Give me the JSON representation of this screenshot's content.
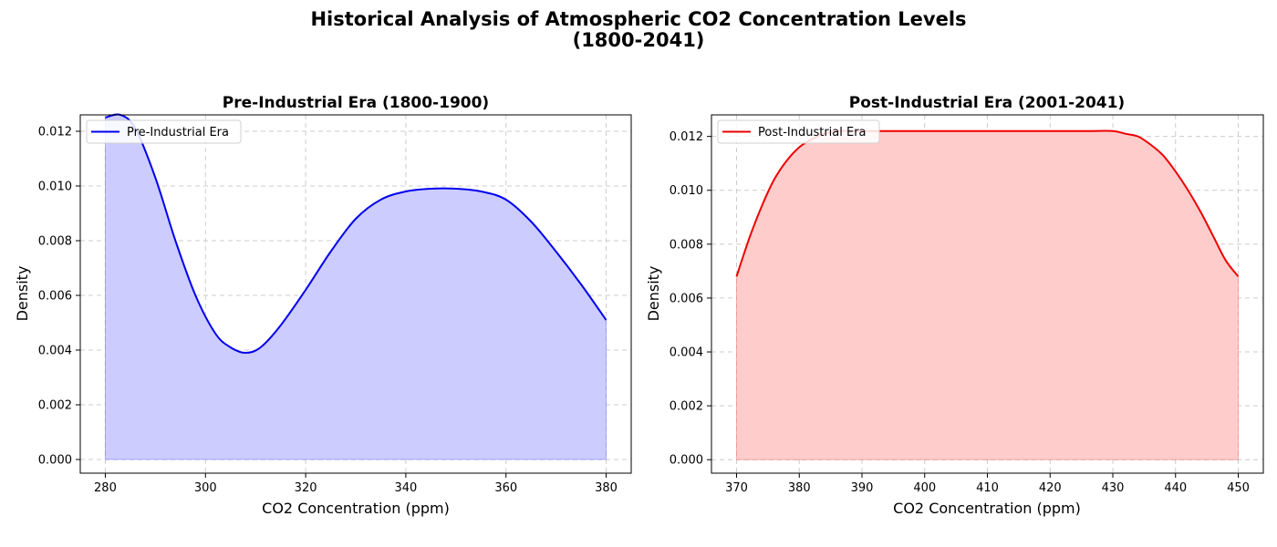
{
  "figure": {
    "title_line1": "Historical Analysis of Atmospheric CO2 Concentration Levels",
    "title_line2": "(1800-2041)"
  },
  "chart_data": [
    {
      "type": "area",
      "title": "Pre-Industrial Era (1800-1900)",
      "xlabel": "CO2 Concentration (ppm)",
      "ylabel": "Density",
      "xlim": [
        275,
        385
      ],
      "ylim": [
        -0.0005,
        0.0126
      ],
      "xticks": [
        280,
        300,
        320,
        340,
        360,
        380
      ],
      "yticks": [
        0.0,
        0.002,
        0.004,
        0.006,
        0.008,
        0.01,
        0.012
      ],
      "grid": true,
      "legend_position": "top-left",
      "color": "#0000ee",
      "fill_color": "#ccccff",
      "series": [
        {
          "name": "Pre-Industrial Era",
          "x": [
            280,
            283,
            286,
            290,
            294,
            298,
            302,
            305,
            308,
            311,
            315,
            320,
            325,
            330,
            335,
            340,
            345,
            350,
            355,
            360,
            365,
            370,
            375,
            380
          ],
          "y": [
            0.0125,
            0.0126,
            0.0121,
            0.0103,
            0.008,
            0.006,
            0.0046,
            0.0041,
            0.0039,
            0.0041,
            0.0049,
            0.0062,
            0.0076,
            0.0088,
            0.0095,
            0.0098,
            0.0099,
            0.0099,
            0.0098,
            0.0095,
            0.0087,
            0.0076,
            0.0064,
            0.0051
          ]
        }
      ]
    },
    {
      "type": "area",
      "title": "Post-Industrial Era (2001-2041)",
      "xlabel": "CO2 Concentration (ppm)",
      "ylabel": "Density",
      "xlim": [
        366,
        454
      ],
      "ylim": [
        -0.0005,
        0.0128
      ],
      "xticks": [
        370,
        380,
        390,
        400,
        410,
        420,
        430,
        440,
        450
      ],
      "yticks": [
        0.0,
        0.002,
        0.004,
        0.006,
        0.008,
        0.01,
        0.012
      ],
      "grid": true,
      "legend_position": "top-left",
      "color": "#ee0000",
      "fill_color": "#ffcccc",
      "series": [
        {
          "name": "Post-Industrial Era",
          "x": [
            370,
            372,
            374,
            376,
            378,
            380,
            382,
            384,
            386,
            390,
            400,
            410,
            420,
            426,
            430,
            432,
            434,
            436,
            438,
            440,
            442,
            444,
            446,
            448,
            450
          ],
          "y": [
            0.0068,
            0.0082,
            0.0094,
            0.0104,
            0.0111,
            0.0116,
            0.0119,
            0.0121,
            0.0122,
            0.0122,
            0.0122,
            0.0122,
            0.0122,
            0.0122,
            0.0122,
            0.0121,
            0.012,
            0.0117,
            0.0113,
            0.0107,
            0.01,
            0.0092,
            0.0083,
            0.0074,
            0.0068
          ]
        }
      ]
    }
  ]
}
